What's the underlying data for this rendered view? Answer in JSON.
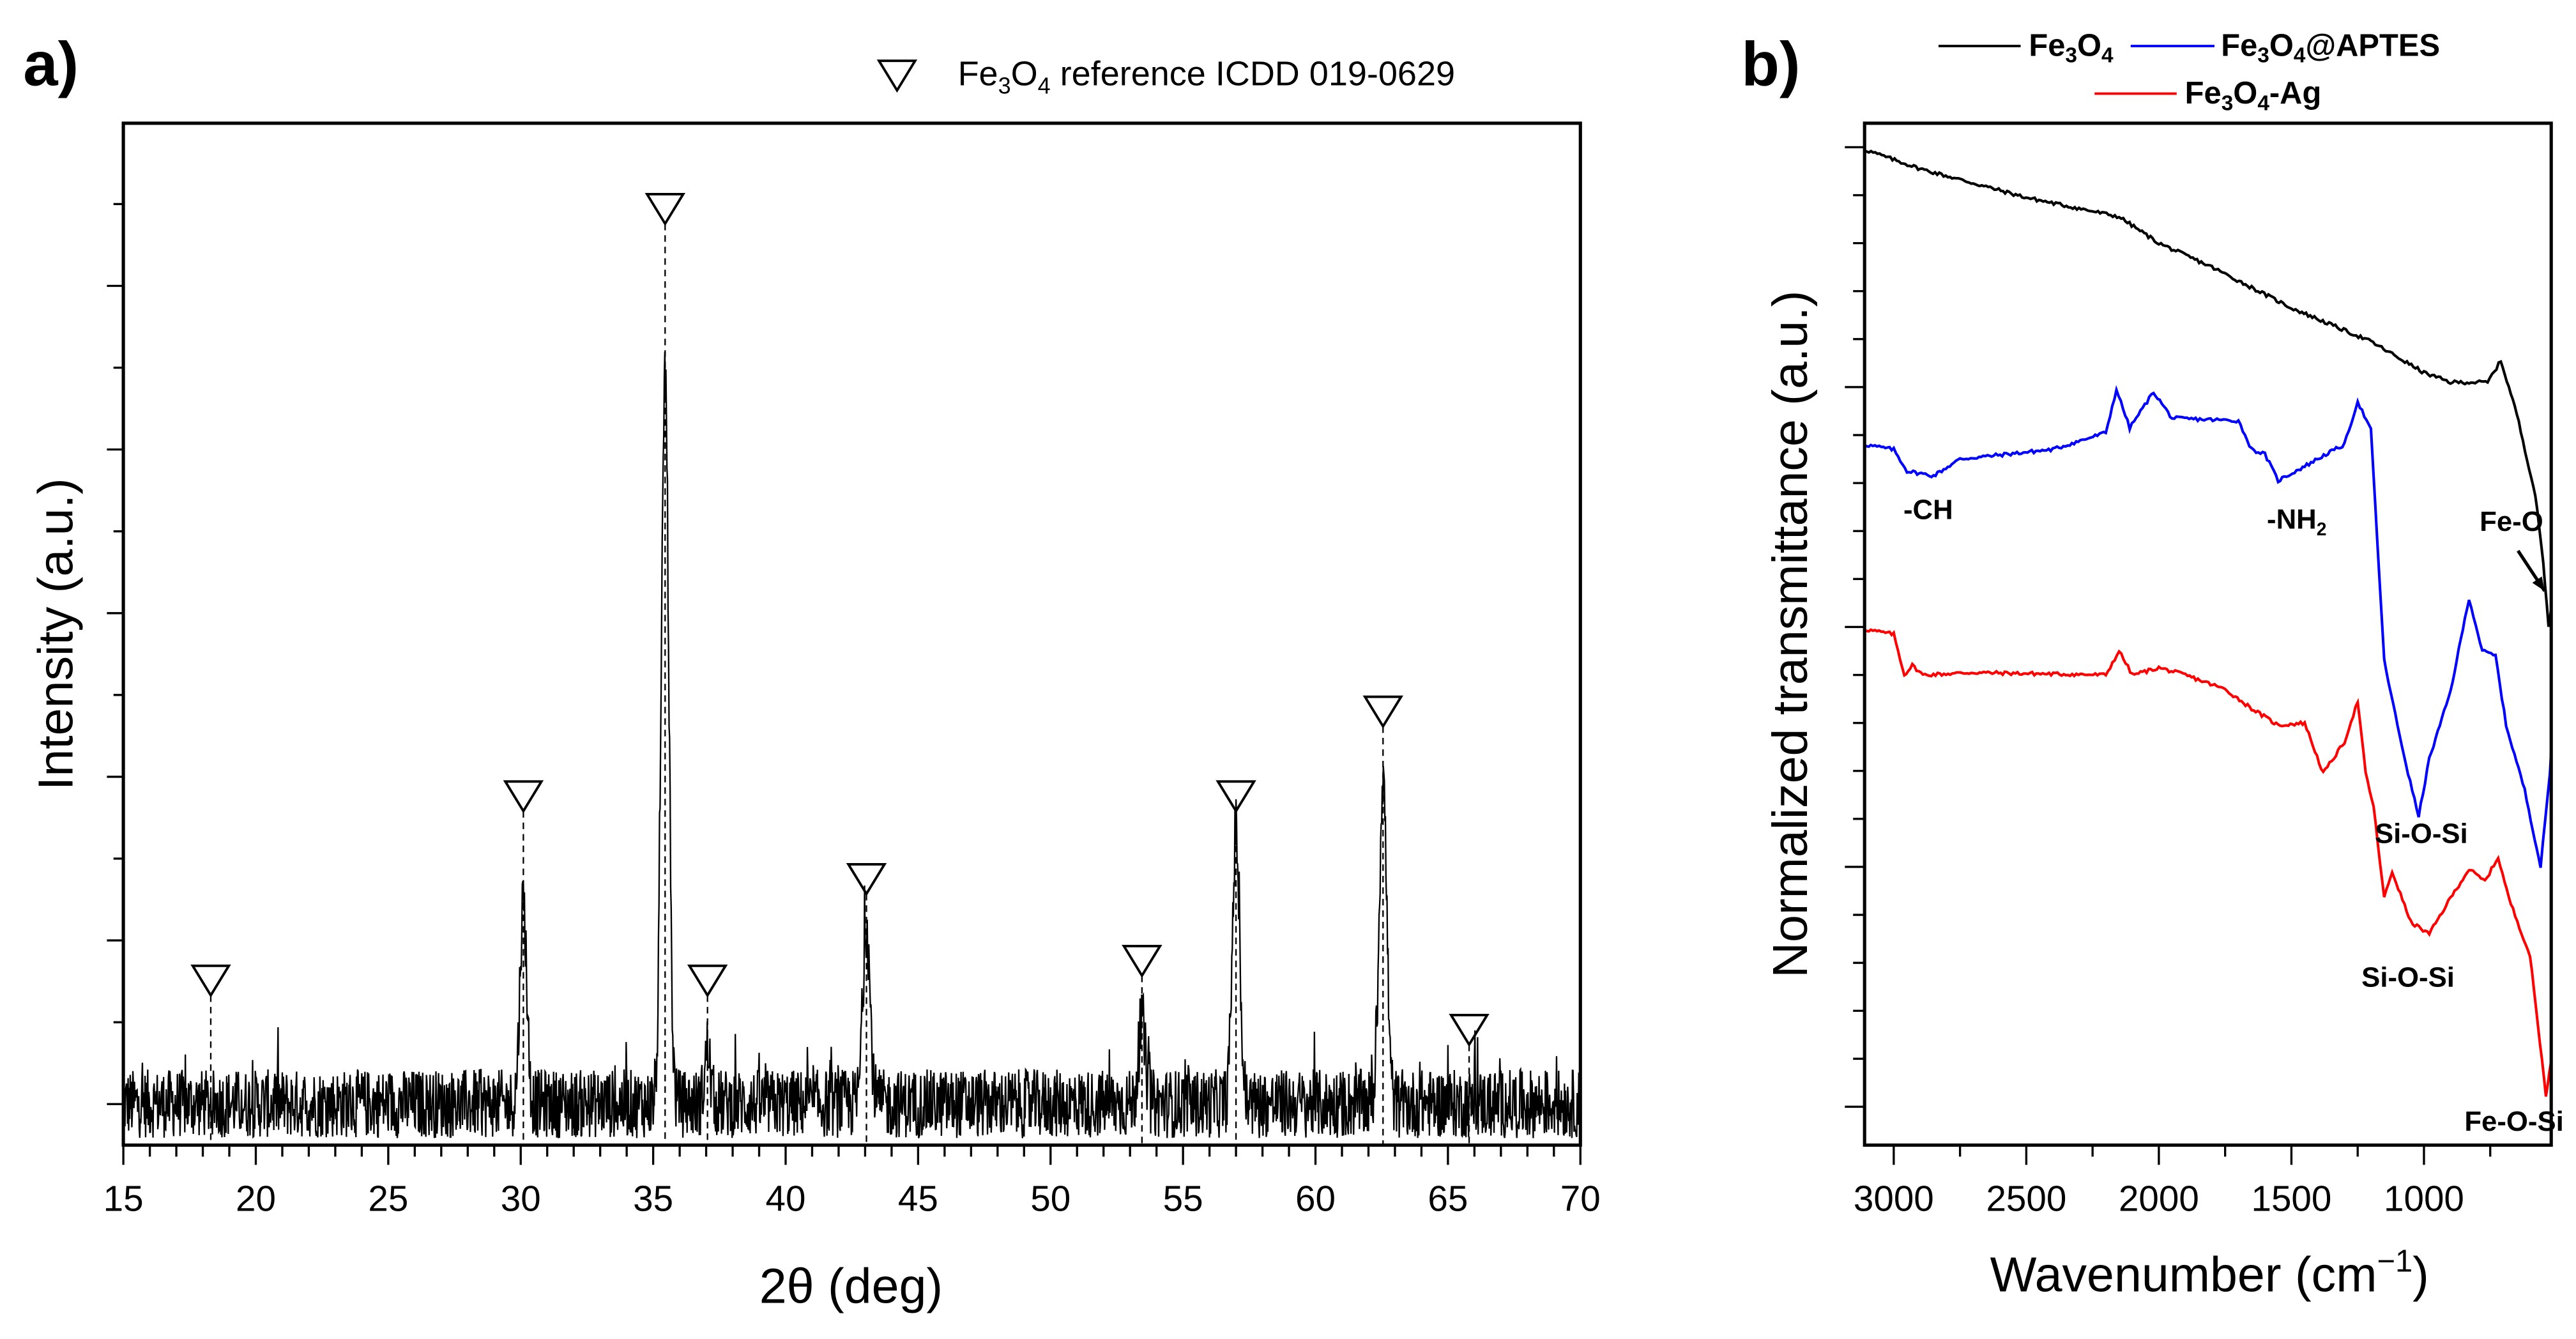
{
  "chart_data": [
    {
      "panel_label": "a)",
      "type": "line",
      "title": "",
      "xlabel": "2θ (deg)",
      "ylabel": "Intensity (a.u.)",
      "xlim": [
        15,
        70
      ],
      "ylim": [
        -4.2,
        99.5
      ],
      "xticks": [
        15,
        20,
        25,
        30,
        35,
        40,
        45,
        50,
        55,
        60,
        65,
        70
      ],
      "legend": {
        "position": "top-right",
        "marker": "open-down-triangle",
        "label_main": "Fe",
        "sub1": "3",
        "mid": "O",
        "sub2": "4",
        "label_rest": " reference ICDD 019-0629"
      },
      "series": [
        {
          "name": "XRD pattern",
          "color": "#000000",
          "noise_amplitude": 3.5,
          "peaks": [
            {
              "x": 30.1,
              "height": 20.7,
              "fwhm": 0.3
            },
            {
              "x": 35.45,
              "height": 74.5,
              "fwhm": 0.32
            },
            {
              "x": 37.05,
              "height": 5.5,
              "fwhm": 0.25
            },
            {
              "x": 43.05,
              "height": 18.3,
              "fwhm": 0.32
            },
            {
              "x": 53.45,
              "height": 8.2,
              "fwhm": 0.3
            },
            {
              "x": 57.0,
              "height": 27.8,
              "fwhm": 0.32
            },
            {
              "x": 62.55,
              "height": 33.3,
              "fwhm": 0.33
            }
          ]
        }
      ],
      "reference_markers": [
        {
          "x": 18.3,
          "y": 12.5
        },
        {
          "x": 30.1,
          "y": 31.2
        },
        {
          "x": 35.45,
          "y": 90.8
        },
        {
          "x": 37.05,
          "y": 12.5
        },
        {
          "x": 43.05,
          "y": 22.8
        },
        {
          "x": 53.45,
          "y": 14.5
        },
        {
          "x": 57.0,
          "y": 31.2
        },
        {
          "x": 62.55,
          "y": 39.8
        },
        {
          "x": 65.8,
          "y": 7.5
        }
      ]
    },
    {
      "panel_label": "b)",
      "type": "line",
      "xlabel": "Wavenumber (cm",
      "xlabel_sup": "−1",
      "xlabel_end": ")",
      "ylabel": "Normalized transmittance (a.u.)",
      "xlim": [
        3110,
        520
      ],
      "ylim": [
        -0.16,
        4.1
      ],
      "xticks": [
        3000,
        2500,
        2000,
        1500,
        1000
      ],
      "legend": {
        "position": "top"
      },
      "series": [
        {
          "name": "Fe3O4",
          "label_parts": [
            "Fe",
            "3",
            "O",
            "4",
            ""
          ],
          "color": "#000000",
          "x": [
            3110,
            2900,
            2500,
            2150,
            2000,
            1800,
            1500,
            1200,
            1000,
            900,
            760,
            710,
            650,
            580,
            550,
            530,
            520
          ],
          "y": [
            3.99,
            3.91,
            3.79,
            3.71,
            3.6,
            3.5,
            3.33,
            3.19,
            3.06,
            3.02,
            3.02,
            3.11,
            2.89,
            2.55,
            2.27,
            2.0,
            2.08
          ]
        },
        {
          "name": "Fe3O4@APTES",
          "label_parts": [
            "Fe",
            "3",
            "O",
            "4",
            "@APTES"
          ],
          "color": "#0000ff",
          "x": [
            3110,
            3000,
            2950,
            2850,
            2750,
            2400,
            2200,
            2160,
            2110,
            2020,
            1950,
            1700,
            1650,
            1600,
            1550,
            1450,
            1370,
            1300,
            1250,
            1200,
            1150,
            1100,
            1060,
            1020,
            980,
            900,
            830,
            780,
            730,
            690,
            620,
            560,
            525,
            520
          ],
          "y": [
            2.76,
            2.74,
            2.65,
            2.63,
            2.7,
            2.74,
            2.81,
            2.99,
            2.83,
            2.98,
            2.87,
            2.86,
            2.74,
            2.72,
            2.61,
            2.67,
            2.72,
            2.76,
            2.94,
            2.82,
            1.86,
            1.59,
            1.39,
            1.21,
            1.45,
            1.73,
            2.12,
            1.9,
            1.88,
            1.59,
            1.32,
            1.0,
            1.39,
            1.49
          ]
        },
        {
          "name": "Fe3O4-Ag",
          "label_parts": [
            "Fe",
            "3",
            "O",
            "4",
            "-Ag"
          ],
          "color": "#ff0000",
          "x": [
            3110,
            3000,
            2960,
            2930,
            2890,
            2700,
            2200,
            2150,
            2100,
            2000,
            1900,
            1750,
            1650,
            1550,
            1450,
            1380,
            1300,
            1250,
            1220,
            1190,
            1150,
            1120,
            1050,
            980,
            900,
            830,
            770,
            720,
            680,
            600,
            540,
            520
          ],
          "y": [
            1.99,
            1.97,
            1.8,
            1.84,
            1.8,
            1.81,
            1.8,
            1.9,
            1.8,
            1.83,
            1.8,
            1.74,
            1.66,
            1.59,
            1.6,
            1.39,
            1.52,
            1.69,
            1.39,
            1.25,
            0.87,
            0.98,
            0.77,
            0.72,
            0.87,
            0.99,
            0.94,
            1.04,
            0.87,
            0.63,
            0.05,
            0.19
          ]
        }
      ],
      "annotations": [
        {
          "text": "-CH",
          "x": 2870,
          "y": 2.45
        },
        {
          "text": "-NH",
          "sub": "2",
          "x": 1480,
          "y": 2.41
        },
        {
          "text": "Fe-O",
          "x": 670,
          "y": 2.4,
          "arrow_to": [
            545,
            2.15
          ]
        },
        {
          "text": "Si-O-Si",
          "x": 1010,
          "y": 1.1
        },
        {
          "text": "Si-O-Si",
          "x": 1060,
          "y": 0.5
        },
        {
          "text": "Fe-O-Si",
          "x": 660,
          "y": -0.1
        }
      ]
    }
  ]
}
